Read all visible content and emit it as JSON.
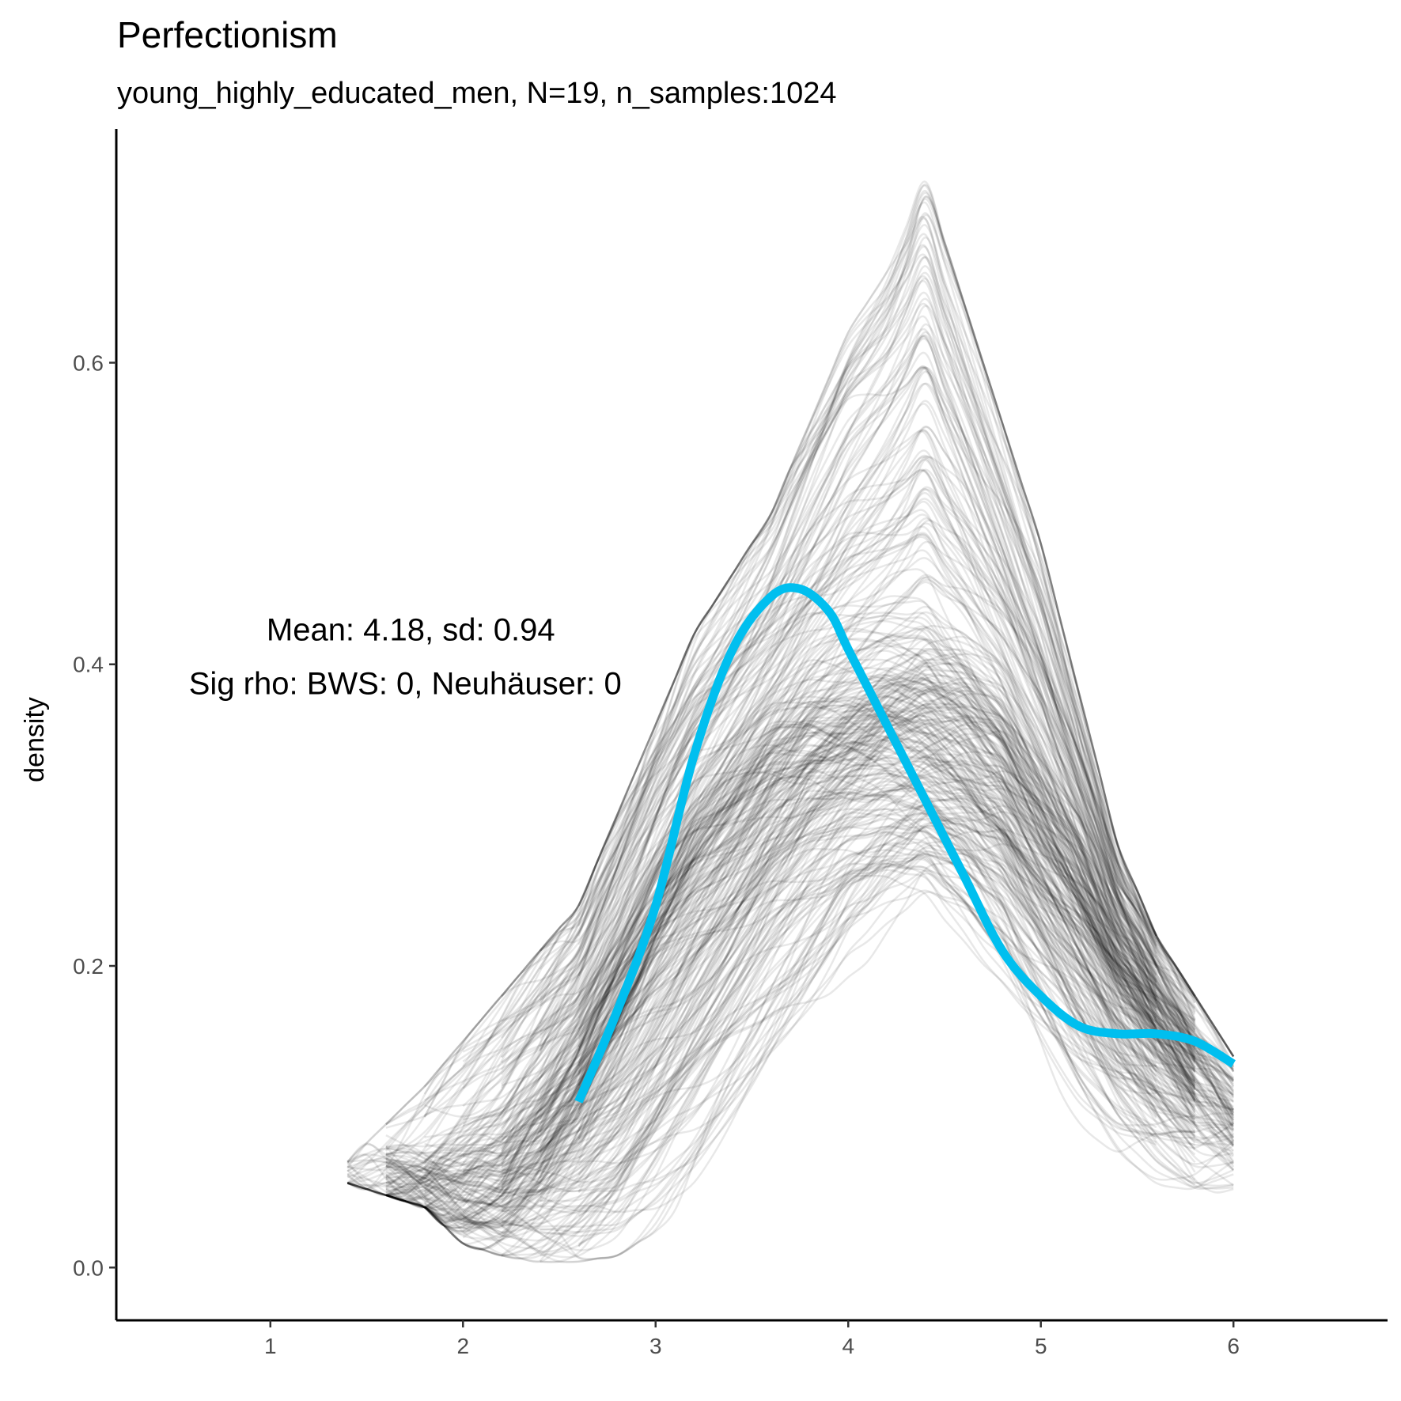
{
  "chart_data": {
    "type": "line",
    "title": "Perfectionism",
    "subtitle": "young_highly_educated_men, N=19, n_samples:1024",
    "xlabel": "",
    "ylabel": "density",
    "xlim": [
      0.2,
      6.8
    ],
    "ylim": [
      -0.035,
      0.755
    ],
    "xticks": [
      1,
      2,
      3,
      4,
      5,
      6
    ],
    "yticks": [
      0.0,
      0.2,
      0.4,
      0.6
    ],
    "ytick_labels": [
      "0.0",
      "0.2",
      "0.4",
      "0.6"
    ],
    "grid": false,
    "annotations": [
      "Mean: 4.18, sd: 0.94",
      "Sig rho: BWS: 0, Neuhäuser: 0"
    ],
    "annotation_anchor": {
      "x": 1.7,
      "y": 0.395
    },
    "sample_curves": {
      "description_count": 1024,
      "color": "#000000",
      "opacity": 0.09,
      "envelope_low": {
        "x": [
          1.4,
          1.8,
          2.0,
          2.2,
          2.4,
          2.6,
          2.8,
          3.0,
          3.2,
          3.4,
          3.6,
          3.8,
          4.0,
          4.2,
          4.4,
          4.6,
          4.8,
          5.0,
          5.2,
          5.4,
          5.6,
          5.8,
          6.0
        ],
        "y": [
          0.07,
          0.05,
          0.02,
          0.01,
          0.005,
          0.005,
          0.01,
          0.03,
          0.06,
          0.1,
          0.14,
          0.18,
          0.22,
          0.24,
          0.25,
          0.23,
          0.2,
          0.16,
          0.12,
          0.09,
          0.07,
          0.06,
          0.065
        ]
      },
      "envelope_high": {
        "x": [
          1.4,
          1.8,
          2.0,
          2.2,
          2.4,
          2.6,
          2.8,
          3.0,
          3.2,
          3.4,
          3.6,
          3.8,
          4.0,
          4.2,
          4.4,
          4.6,
          4.8,
          5.0,
          5.2,
          5.4,
          5.6,
          5.8,
          6.0
        ],
        "y": [
          0.07,
          0.12,
          0.15,
          0.18,
          0.21,
          0.24,
          0.3,
          0.36,
          0.42,
          0.46,
          0.5,
          0.56,
          0.62,
          0.66,
          0.72,
          0.64,
          0.56,
          0.48,
          0.38,
          0.28,
          0.22,
          0.18,
          0.14
        ]
      },
      "center": {
        "x": [
          1.6,
          1.8,
          2.0,
          2.2,
          2.4,
          2.6,
          2.8,
          3.0,
          3.2,
          3.4,
          3.6,
          3.8,
          4.0,
          4.2,
          4.4,
          4.6,
          4.8,
          5.0,
          5.2,
          5.4,
          5.6,
          5.8,
          6.0
        ],
        "y": [
          0.05,
          0.045,
          0.05,
          0.06,
          0.09,
          0.13,
          0.18,
          0.23,
          0.27,
          0.3,
          0.33,
          0.35,
          0.36,
          0.37,
          0.37,
          0.36,
          0.34,
          0.3,
          0.26,
          0.21,
          0.17,
          0.13,
          0.1
        ]
      }
    },
    "series": [
      {
        "color": "#00BFEF",
        "x": [
          2.6,
          2.8,
          3.0,
          3.2,
          3.4,
          3.6,
          3.75,
          3.9,
          4.0,
          4.2,
          4.4,
          4.6,
          4.8,
          5.0,
          5.2,
          5.4,
          5.6,
          5.8,
          6.0
        ],
        "y": [
          0.11,
          0.17,
          0.24,
          0.34,
          0.41,
          0.445,
          0.45,
          0.435,
          0.41,
          0.36,
          0.31,
          0.26,
          0.21,
          0.18,
          0.16,
          0.155,
          0.155,
          0.15,
          0.135
        ]
      }
    ]
  }
}
